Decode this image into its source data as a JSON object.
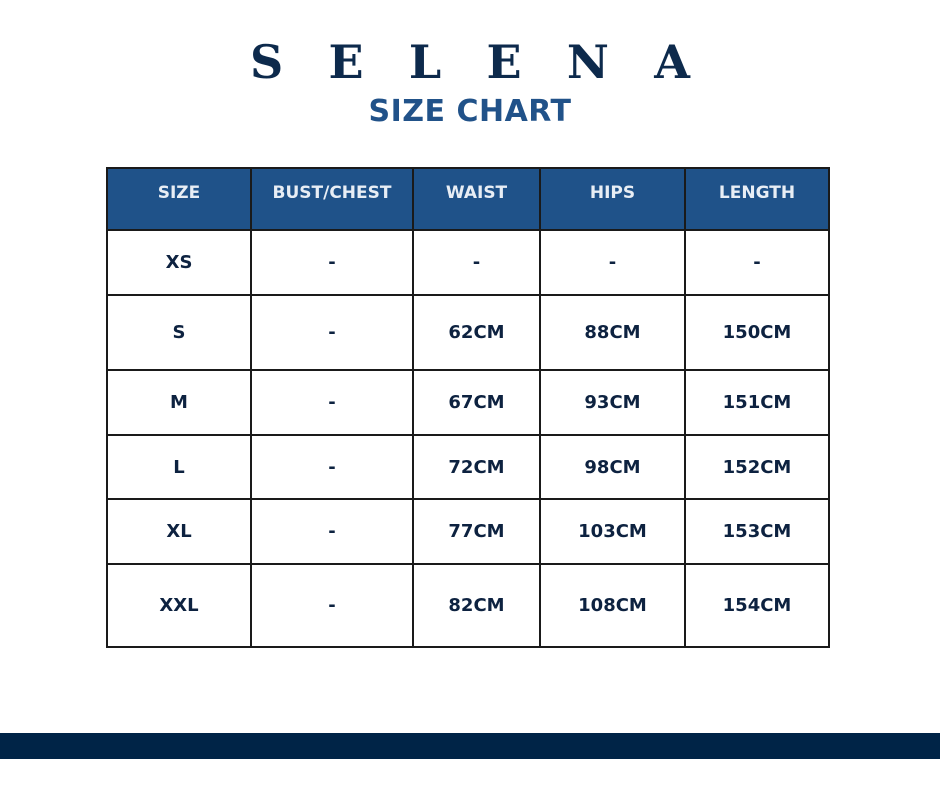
{
  "brand": "SELENA",
  "subtitle": "SIZE CHART",
  "table": {
    "headers": [
      "SIZE",
      "BUST/CHEST",
      "WAIST",
      "HIPS",
      "LENGTH"
    ],
    "rows": [
      [
        "XS",
        "-",
        "-",
        "-",
        "-"
      ],
      [
        "S",
        "-",
        "62CM",
        "88CM",
        "150CM"
      ],
      [
        "M",
        "-",
        "67CM",
        "93CM",
        "151CM"
      ],
      [
        "L",
        "-",
        "72CM",
        "98CM",
        "152CM"
      ],
      [
        "XL",
        "-",
        "77CM",
        "103CM",
        "153CM"
      ],
      [
        "XXL",
        "-",
        "82CM",
        "108CM",
        "154CM"
      ]
    ]
  },
  "colors": {
    "brand": "#0d2a4c",
    "header_bg": "#1f5289",
    "footer_bar": "#002447"
  }
}
